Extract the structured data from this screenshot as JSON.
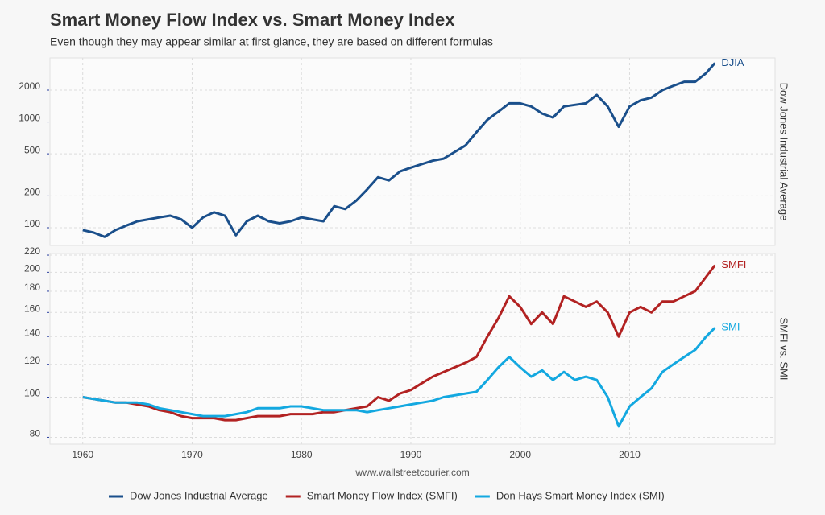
{
  "title": "Smart Money Flow Index vs. Smart Money Index",
  "subtitle": "Even though they may appear similar at first glance, they are based on different formulas",
  "source": "www.wallstreetcourier.com",
  "chart_data": [
    {
      "type": "line",
      "log_scale": true,
      "grid": true,
      "y_axis_label": "Dow Jones Industrial Average",
      "x": [
        1960,
        1961,
        1962,
        1963,
        1964,
        1965,
        1966,
        1967,
        1968,
        1969,
        1970,
        1971,
        1972,
        1973,
        1974,
        1975,
        1976,
        1977,
        1978,
        1979,
        1980,
        1981,
        1982,
        1983,
        1984,
        1985,
        1986,
        1987,
        1988,
        1989,
        1990,
        1991,
        1992,
        1993,
        1994,
        1995,
        1996,
        1997,
        1998,
        1999,
        2000,
        2001,
        2002,
        2003,
        2004,
        2005,
        2006,
        2007,
        2008,
        2009,
        2010,
        2011,
        2012,
        2013,
        2014,
        2015,
        2016,
        2017,
        2017.8
      ],
      "xlim": [
        1957,
        2023.3
      ],
      "ylim": [
        68,
        4030
      ],
      "yticks": [
        100,
        200,
        500,
        1000,
        2000
      ],
      "series": [
        {
          "name": "Dow Jones Industrial Average",
          "label": "DJIA",
          "color": "#1a4f8b",
          "values": [
            95,
            90,
            82,
            95,
            105,
            115,
            120,
            125,
            130,
            120,
            100,
            125,
            140,
            130,
            85,
            115,
            130,
            115,
            110,
            115,
            125,
            120,
            115,
            160,
            150,
            180,
            230,
            300,
            280,
            340,
            370,
            400,
            430,
            450,
            520,
            600,
            800,
            1050,
            1250,
            1500,
            1500,
            1400,
            1200,
            1100,
            1400,
            1450,
            1500,
            1800,
            1400,
            900,
            1400,
            1600,
            1700,
            2000,
            2200,
            2400,
            2400,
            2900,
            3600
          ]
        }
      ]
    },
    {
      "type": "line",
      "log_scale": true,
      "grid": true,
      "y_axis_label": "SMFI vs. SMI",
      "x": [
        1960,
        1961,
        1962,
        1963,
        1964,
        1965,
        1966,
        1967,
        1968,
        1969,
        1970,
        1971,
        1972,
        1973,
        1974,
        1975,
        1976,
        1977,
        1978,
        1979,
        1980,
        1981,
        1982,
        1983,
        1984,
        1985,
        1986,
        1987,
        1988,
        1989,
        1990,
        1991,
        1992,
        1993,
        1994,
        1995,
        1996,
        1997,
        1998,
        1999,
        2000,
        2001,
        2002,
        2003,
        2004,
        2005,
        2006,
        2007,
        2008,
        2009,
        2010,
        2011,
        2012,
        2013,
        2014,
        2015,
        2016,
        2017,
        2017.8
      ],
      "xlim": [
        1957,
        2023.3
      ],
      "xticks": [
        1960,
        1970,
        1980,
        1990,
        2000,
        2010
      ],
      "ylim": [
        77,
        222
      ],
      "yticks": [
        80,
        100,
        120,
        140,
        160,
        180,
        200,
        220
      ],
      "series": [
        {
          "name": "Smart Money Flow Index (SMFI)",
          "label": "SMFI",
          "color": "#b22222",
          "values": [
            100,
            99,
            98,
            97,
            97,
            96,
            95,
            93,
            92,
            90,
            89,
            89,
            89,
            88,
            88,
            89,
            90,
            90,
            90,
            91,
            91,
            91,
            92,
            92,
            93,
            94,
            95,
            100,
            98,
            102,
            104,
            108,
            112,
            115,
            118,
            121,
            125,
            140,
            155,
            175,
            165,
            150,
            160,
            150,
            175,
            170,
            165,
            170,
            160,
            140,
            160,
            165,
            160,
            170,
            170,
            175,
            180,
            195,
            208
          ]
        },
        {
          "name": "Don Hays Smart Money Index (SMI)",
          "label": "SMI",
          "color": "#13a8e0",
          "values": [
            100,
            99,
            98,
            97,
            97,
            97,
            96,
            94,
            93,
            92,
            91,
            90,
            90,
            90,
            91,
            92,
            94,
            94,
            94,
            95,
            95,
            94,
            93,
            93,
            93,
            93,
            92,
            93,
            94,
            95,
            96,
            97,
            98,
            100,
            101,
            102,
            103,
            110,
            118,
            125,
            118,
            112,
            116,
            110,
            115,
            110,
            112,
            110,
            100,
            85,
            95,
            100,
            105,
            115,
            120,
            125,
            130,
            140,
            147
          ]
        }
      ]
    }
  ]
}
